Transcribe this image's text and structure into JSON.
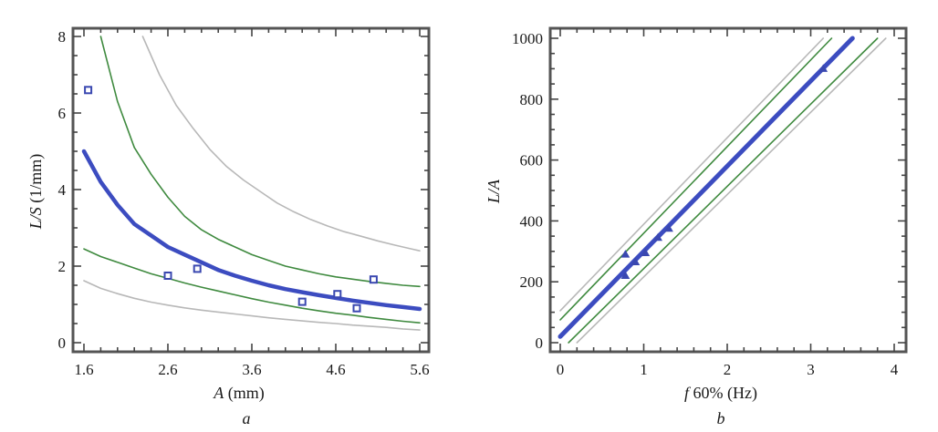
{
  "chart_data": [
    {
      "panel": "a",
      "type": "scatter",
      "title": "",
      "panel_label": "a",
      "xlabel_italic": "A",
      "xlabel_rest": " (mm)",
      "ylabel_italic": "L/S",
      "ylabel_rest": " (1/mm)",
      "xlim": [
        1.5,
        5.7
      ],
      "ylim": [
        -0.3,
        8.2
      ],
      "xticks": [
        1.6,
        2.6,
        3.6,
        4.6,
        5.6
      ],
      "xtick_labels": [
        "1.6",
        "2.6",
        "3.6",
        "4.6",
        "5.6"
      ],
      "yticks": [
        0,
        2,
        4,
        6,
        8
      ],
      "ytick_labels": [
        "0",
        "2",
        "4",
        "6",
        "8"
      ],
      "x_minor_step": 0.2,
      "y_minor_step": 0.5,
      "grid": false,
      "legend": "none",
      "points": {
        "name": "observed",
        "color": "#3a48b0",
        "x": [
          1.65,
          2.6,
          2.95,
          4.2,
          4.62,
          4.85,
          5.05
        ],
        "y": [
          6.6,
          1.75,
          1.93,
          1.07,
          1.27,
          0.9,
          1.65
        ]
      },
      "series": [
        {
          "name": "fit",
          "role": "fitted-curve",
          "color": "#3c4cc0",
          "x": [
            1.6,
            1.8,
            2.0,
            2.2,
            2.4,
            2.6,
            2.8,
            3.0,
            3.2,
            3.4,
            3.6,
            3.8,
            4.0,
            4.2,
            4.4,
            4.6,
            4.8,
            5.0,
            5.2,
            5.4,
            5.6
          ],
          "y": [
            5.0,
            4.2,
            3.6,
            3.1,
            2.8,
            2.5,
            2.3,
            2.1,
            1.9,
            1.75,
            1.62,
            1.5,
            1.4,
            1.32,
            1.24,
            1.17,
            1.1,
            1.04,
            0.98,
            0.93,
            0.88
          ]
        },
        {
          "name": "confidence-upper",
          "role": "confidence-band",
          "color": "#3f8a3f",
          "x": [
            1.8,
            2.0,
            2.2,
            2.4,
            2.6,
            2.8,
            3.0,
            3.2,
            3.4,
            3.6,
            3.8,
            4.0,
            4.2,
            4.4,
            4.6,
            4.8,
            5.0,
            5.2,
            5.4,
            5.6
          ],
          "y": [
            8.0,
            6.3,
            5.1,
            4.4,
            3.8,
            3.3,
            2.95,
            2.7,
            2.5,
            2.3,
            2.15,
            2.0,
            1.9,
            1.8,
            1.72,
            1.66,
            1.6,
            1.55,
            1.5,
            1.47
          ]
        },
        {
          "name": "confidence-lower",
          "role": "confidence-band",
          "color": "#3f8a3f",
          "x": [
            1.6,
            1.8,
            2.0,
            2.2,
            2.4,
            2.6,
            2.8,
            3.0,
            3.2,
            3.4,
            3.6,
            3.8,
            4.0,
            4.2,
            4.4,
            4.6,
            4.8,
            5.0,
            5.2,
            5.4,
            5.6
          ],
          "y": [
            2.45,
            2.25,
            2.1,
            1.95,
            1.8,
            1.68,
            1.56,
            1.45,
            1.35,
            1.25,
            1.15,
            1.06,
            0.98,
            0.9,
            0.83,
            0.77,
            0.72,
            0.66,
            0.61,
            0.56,
            0.52
          ]
        },
        {
          "name": "prediction-upper",
          "role": "prediction-band",
          "color": "#b8b8b8",
          "x": [
            2.3,
            2.5,
            2.7,
            2.9,
            3.1,
            3.3,
            3.5,
            3.7,
            3.9,
            4.1,
            4.3,
            4.5,
            4.7,
            4.9,
            5.1,
            5.3,
            5.5,
            5.6
          ],
          "y": [
            8.0,
            7.0,
            6.2,
            5.6,
            5.05,
            4.6,
            4.25,
            3.95,
            3.65,
            3.42,
            3.22,
            3.05,
            2.9,
            2.78,
            2.66,
            2.55,
            2.45,
            2.4
          ]
        },
        {
          "name": "prediction-lower",
          "role": "prediction-band",
          "color": "#b8b8b8",
          "x": [
            1.6,
            1.8,
            2.0,
            2.2,
            2.4,
            2.6,
            2.8,
            3.0,
            3.2,
            3.4,
            3.6,
            3.8,
            4.0,
            4.2,
            4.4,
            4.6,
            4.8,
            5.0,
            5.2,
            5.4,
            5.6
          ],
          "y": [
            1.62,
            1.42,
            1.28,
            1.16,
            1.06,
            0.98,
            0.91,
            0.85,
            0.8,
            0.75,
            0.7,
            0.65,
            0.61,
            0.57,
            0.53,
            0.5,
            0.46,
            0.43,
            0.4,
            0.36,
            0.33
          ]
        }
      ]
    },
    {
      "panel": "b",
      "type": "scatter",
      "title": "",
      "panel_label": "b",
      "xlabel_italic": "f",
      "xlabel_rest": " 60% (Hz)",
      "ylabel_italic": "L/A",
      "ylabel_rest": "",
      "xlim": [
        -0.1,
        4.15
      ],
      "ylim": [
        -30,
        1030
      ],
      "xticks": [
        0,
        1,
        2,
        3,
        4
      ],
      "xtick_labels": [
        "0",
        "1",
        "2",
        "3",
        "4"
      ],
      "yticks": [
        0,
        200,
        400,
        600,
        800,
        1000
      ],
      "ytick_labels": [
        "0",
        "200",
        "400",
        "600",
        "800",
        "1000"
      ],
      "x_minor_step": 0.2,
      "y_minor_step": 50,
      "grid": false,
      "legend": "none",
      "points": {
        "name": "observed",
        "color": "#3a48b0",
        "x": [
          0.78,
          0.78,
          0.9,
          1.02,
          1.17,
          1.3,
          3.15
        ],
        "y": [
          290,
          220,
          265,
          295,
          345,
          375,
          900
        ]
      },
      "series": [
        {
          "name": "fit",
          "role": "fitted-line",
          "color": "#3c4cc0",
          "x": [
            0.0,
            3.5
          ],
          "y": [
            20,
            1000
          ]
        },
        {
          "name": "confidence-upper",
          "role": "confidence-band",
          "color": "#3f8a3f",
          "x": [
            0.0,
            3.25
          ],
          "y": [
            75,
            1000
          ]
        },
        {
          "name": "confidence-lower",
          "role": "confidence-band",
          "color": "#3f8a3f",
          "x": [
            0.1,
            3.8
          ],
          "y": [
            0,
            1000
          ]
        },
        {
          "name": "prediction-upper",
          "role": "prediction-band",
          "color": "#b8b8b8",
          "x": [
            0.0,
            3.15
          ],
          "y": [
            105,
            1000
          ]
        },
        {
          "name": "prediction-lower",
          "role": "prediction-band",
          "color": "#b8b8b8",
          "x": [
            0.2,
            3.9
          ],
          "y": [
            0,
            1000
          ]
        }
      ]
    }
  ]
}
